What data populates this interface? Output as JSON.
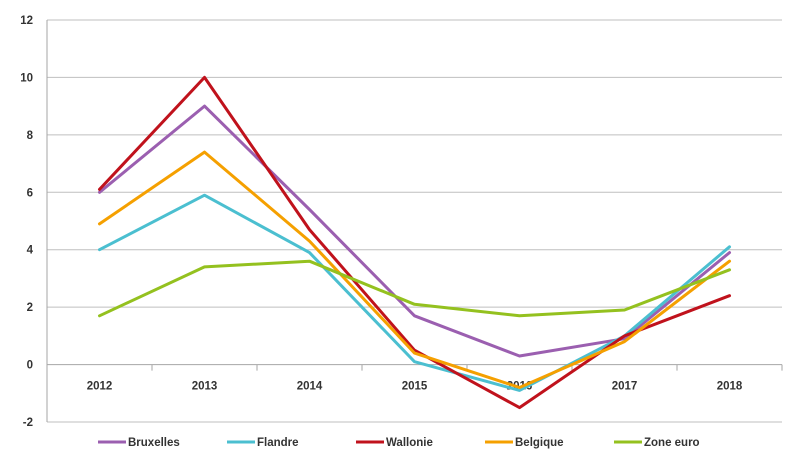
{
  "chart_data": {
    "type": "line",
    "title": "",
    "xlabel": "",
    "ylabel": "",
    "categories": [
      "2012",
      "2013",
      "2014",
      "2015",
      "2016",
      "2017",
      "2018"
    ],
    "ylim": [
      -2,
      12
    ],
    "yticks": [
      -2,
      0,
      2,
      4,
      6,
      8,
      10,
      12
    ],
    "ytick_labels": [
      "-2",
      "0",
      "2",
      "4",
      "6",
      "8",
      "10",
      "12"
    ],
    "grid": "horizontal",
    "legend_position": "bottom",
    "series": [
      {
        "name": "Bruxelles",
        "color": "#9b5fb0",
        "values": [
          6.0,
          9.0,
          5.4,
          1.7,
          0.3,
          0.9,
          3.9
        ]
      },
      {
        "name": "Flandre",
        "color": "#4bbfd0",
        "values": [
          4.0,
          5.9,
          3.9,
          0.1,
          -0.9,
          1.0,
          4.1
        ]
      },
      {
        "name": "Wallonie",
        "color": "#c0121c",
        "values": [
          6.1,
          10.0,
          4.7,
          0.5,
          -1.5,
          1.0,
          2.4
        ]
      },
      {
        "name": "Belgique",
        "color": "#f5a000",
        "values": [
          4.9,
          7.4,
          4.3,
          0.4,
          -0.8,
          0.8,
          3.6
        ]
      },
      {
        "name": "Zone euro",
        "color": "#94c11f",
        "values": [
          1.7,
          3.4,
          3.6,
          2.1,
          1.7,
          1.9,
          3.3
        ]
      }
    ]
  }
}
